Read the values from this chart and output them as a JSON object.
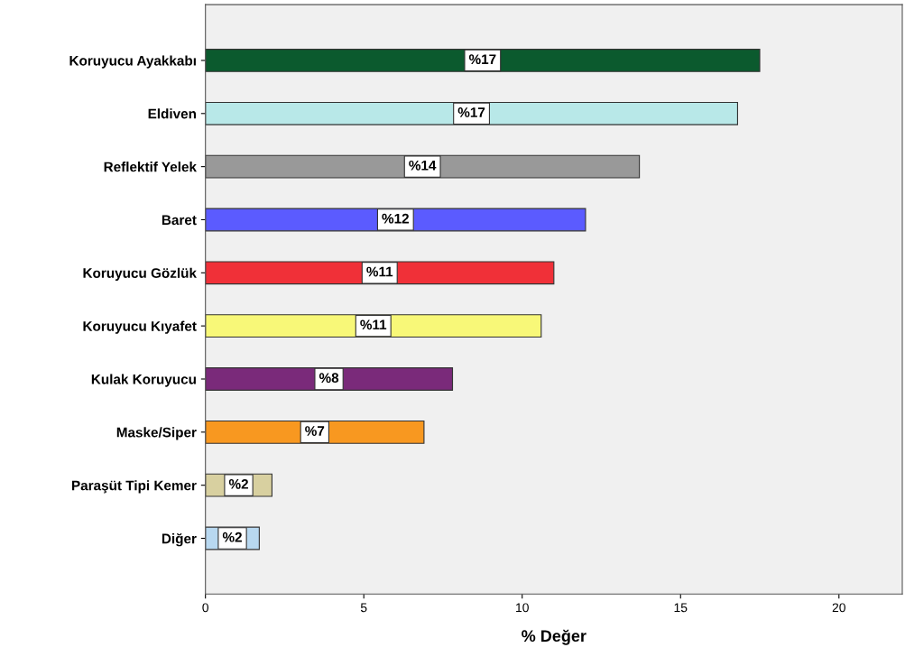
{
  "chart_data": {
    "type": "bar",
    "orientation": "horizontal",
    "xlabel": "% Değer",
    "categories": [
      "Koruyucu Ayakkabı",
      "Eldiven",
      "Reflektif Yelek",
      "Baret",
      "Koruyucu Gözlük",
      "Koruyucu Kıyafet",
      "Kulak Koruyucu",
      "Maske/Siper",
      "Paraşüt Tipi Kemer",
      "Diğer"
    ],
    "values": [
      17.5,
      16.8,
      13.7,
      12.0,
      11.0,
      10.6,
      7.8,
      6.9,
      2.1,
      1.7
    ],
    "colors": [
      "#0b5a2e",
      "#b8e8e8",
      "#999999",
      "#5b5bff",
      "#f03038",
      "#f8f878",
      "#7a2a7a",
      "#f89820",
      "#d8d0a0",
      "#b8d8f0"
    ],
    "value_labels": [
      "%17",
      "%17",
      "%14",
      "%12",
      "%11",
      "%11",
      "%8",
      "%7",
      "%2",
      "%2"
    ],
    "xlim": [
      0,
      22
    ],
    "xticks": [
      0,
      5,
      10,
      15,
      20
    ],
    "grid": false
  }
}
